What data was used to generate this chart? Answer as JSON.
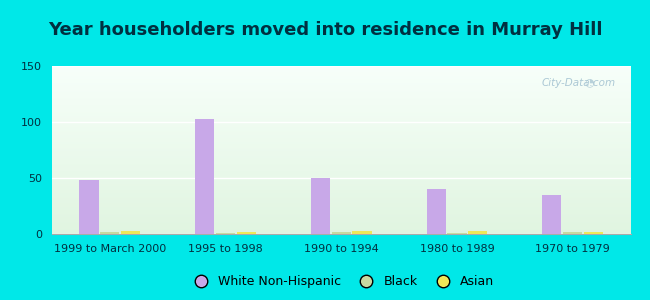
{
  "categories": [
    "1999 to March 2000",
    "1995 to 1998",
    "1990 to 1994",
    "1980 to 1989",
    "1970 to 1979"
  ],
  "series": {
    "White Non-Hispanic": [
      48,
      103,
      50,
      40,
      35
    ],
    "Black": [
      2,
      1,
      2,
      1,
      2
    ],
    "Asian": [
      3,
      2,
      3,
      3,
      2
    ]
  },
  "colors": {
    "White Non-Hispanic": "#c8a8e8",
    "Black": "#c8d8a0",
    "Asian": "#f0e858"
  },
  "title": "Year householders moved into residence in Murray Hill",
  "ylim": [
    0,
    150
  ],
  "yticks": [
    0,
    50,
    100,
    150
  ],
  "bar_width": 0.18,
  "background_outer": "#00e8e8",
  "title_fontsize": 13,
  "axis_fontsize": 8,
  "legend_fontsize": 9,
  "title_color": "#003040",
  "tick_color": "#003040",
  "watermark": "City-Data.com"
}
